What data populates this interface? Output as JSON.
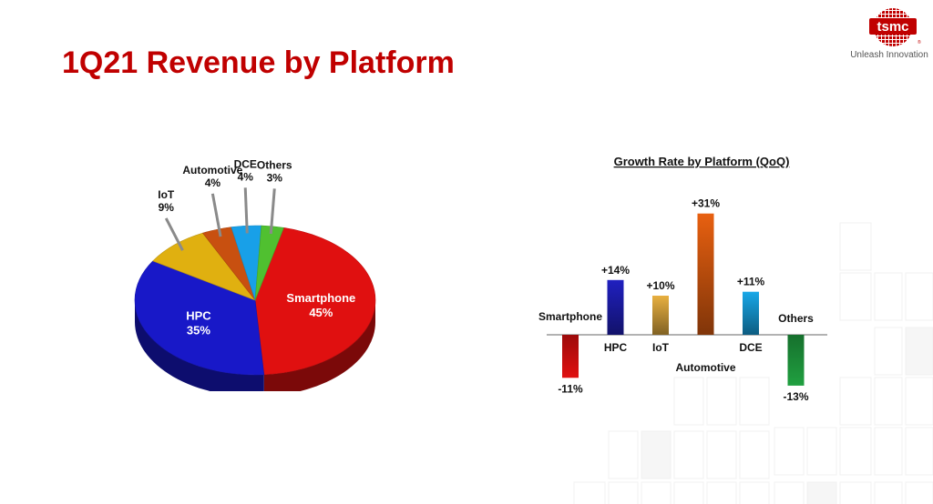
{
  "slide": {
    "title": "1Q21 Revenue by Platform"
  },
  "logo": {
    "text": "tsmc",
    "tagline": "Unleash Innovation"
  },
  "chart_data": [
    {
      "type": "pie",
      "title": "",
      "slices": [
        {
          "label": "Smartphone",
          "value": 45,
          "value_label": "45%",
          "color": "#e01010"
        },
        {
          "label": "HPC",
          "value": 35,
          "value_label": "35%",
          "color": "#1818c8"
        },
        {
          "label": "IoT",
          "value": 9,
          "value_label": "9%",
          "color": "#e0b010"
        },
        {
          "label": "Automotive",
          "value": 4,
          "value_label": "4%",
          "color": "#c85010"
        },
        {
          "label": "DCE",
          "value": 4,
          "value_label": "4%",
          "color": "#18a0e8"
        },
        {
          "label": "Others",
          "value": 3,
          "value_label": "3%",
          "color": "#50c030"
        }
      ]
    },
    {
      "type": "bar",
      "title": "Growth Rate by Platform (QoQ)",
      "categories": [
        "Smartphone",
        "HPC",
        "IoT",
        "Automotive",
        "DCE",
        "Others"
      ],
      "values": [
        -11,
        14,
        10,
        31,
        11,
        -13
      ],
      "value_labels": [
        "-11%",
        "+14%",
        "+10%",
        "+31%",
        "+11%",
        "-13%"
      ],
      "colors": [
        "#e01010",
        "#2020c0",
        "#e8b040",
        "#e86010",
        "#18a8e8",
        "#20a040"
      ],
      "xlabel": "",
      "ylabel": ""
    }
  ]
}
